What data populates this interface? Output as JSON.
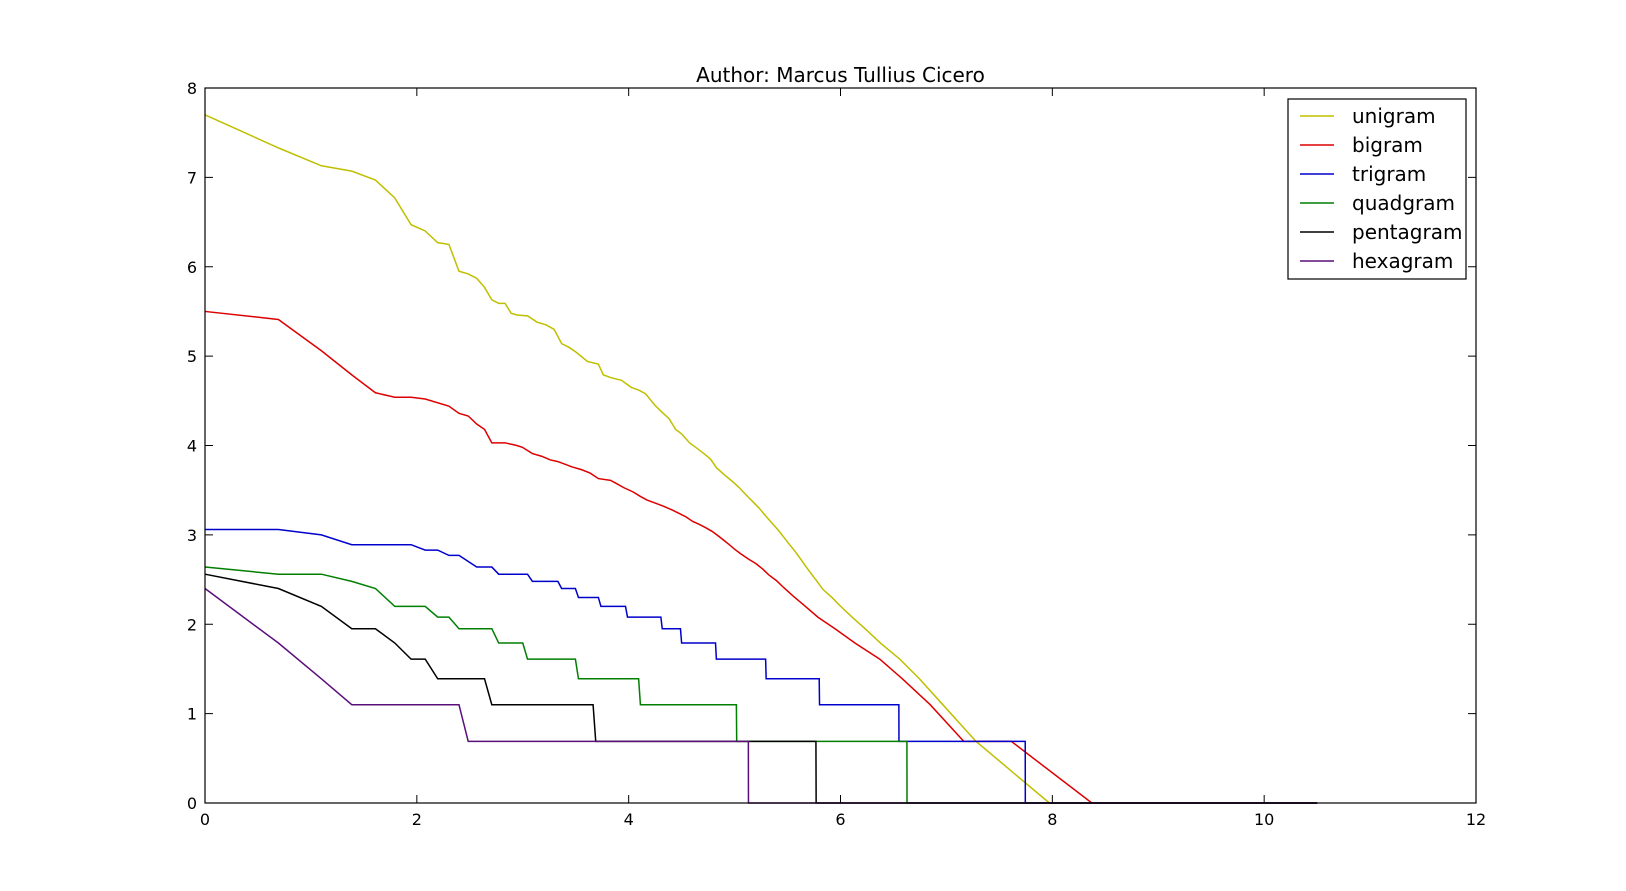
{
  "chart_data": {
    "type": "line",
    "title": "Author: Marcus Tullius Cicero",
    "xlabel": "",
    "ylabel": "",
    "xlim": [
      0,
      12
    ],
    "ylim": [
      0,
      8
    ],
    "xticks": [
      0,
      2,
      4,
      6,
      8,
      10,
      12
    ],
    "yticks": [
      0,
      1,
      2,
      3,
      4,
      5,
      6,
      7,
      8
    ],
    "grid": false,
    "legend_position": "top-right",
    "series": [
      {
        "name": "unigram",
        "color": "#bfbf00",
        "step_last": true,
        "points": [
          [
            0,
            7.7
          ],
          [
            0.693,
            7.33
          ],
          [
            1.099,
            7.13
          ],
          [
            1.386,
            7.07
          ],
          [
            1.609,
            6.97
          ],
          [
            1.792,
            6.77
          ],
          [
            1.946,
            6.47
          ],
          [
            2.079,
            6.4
          ],
          [
            2.197,
            6.27
          ],
          [
            2.303,
            6.25
          ],
          [
            2.398,
            5.95
          ],
          [
            2.485,
            5.92
          ],
          [
            2.565,
            5.87
          ],
          [
            2.639,
            5.77
          ],
          [
            2.708,
            5.63
          ],
          [
            2.773,
            5.59
          ],
          [
            2.833,
            5.59
          ],
          [
            2.89,
            5.48
          ],
          [
            2.944,
            5.46
          ],
          [
            3.045,
            5.45
          ],
          [
            3.135,
            5.38
          ],
          [
            3.219,
            5.35
          ],
          [
            3.296,
            5.3
          ],
          [
            3.367,
            5.14
          ],
          [
            3.434,
            5.1
          ],
          [
            3.497,
            5.05
          ],
          [
            3.611,
            4.94
          ],
          [
            3.714,
            4.91
          ],
          [
            3.761,
            4.79
          ],
          [
            3.829,
            4.76
          ],
          [
            3.932,
            4.73
          ],
          [
            4.025,
            4.65
          ],
          [
            4.094,
            4.62
          ],
          [
            4.159,
            4.58
          ],
          [
            4.248,
            4.45
          ],
          [
            4.317,
            4.37
          ],
          [
            4.382,
            4.3
          ],
          [
            4.443,
            4.18
          ],
          [
            4.5,
            4.13
          ],
          [
            4.575,
            4.03
          ],
          [
            4.644,
            3.97
          ],
          [
            4.71,
            3.91
          ],
          [
            4.771,
            3.85
          ],
          [
            4.83,
            3.75
          ],
          [
            4.905,
            3.67
          ],
          [
            4.977,
            3.6
          ],
          [
            5.043,
            3.53
          ],
          [
            5.106,
            3.45
          ],
          [
            5.165,
            3.38
          ],
          [
            5.231,
            3.3
          ],
          [
            5.288,
            3.22
          ],
          [
            5.347,
            3.14
          ],
          [
            5.407,
            3.06
          ],
          [
            5.461,
            2.98
          ],
          [
            5.513,
            2.9
          ],
          [
            5.568,
            2.82
          ],
          [
            5.624,
            2.73
          ],
          [
            5.677,
            2.64
          ],
          [
            5.727,
            2.56
          ],
          [
            5.778,
            2.48
          ],
          [
            5.834,
            2.39
          ],
          [
            5.919,
            2.3
          ],
          [
            6.002,
            2.2
          ],
          [
            6.109,
            2.08
          ],
          [
            6.232,
            1.95
          ],
          [
            6.377,
            1.79
          ],
          [
            6.559,
            1.61
          ],
          [
            6.745,
            1.39
          ],
          [
            6.966,
            1.1
          ],
          [
            7.279,
            0.69
          ],
          [
            7.972,
            0.0
          ],
          [
            10.5,
            0.0
          ]
        ]
      },
      {
        "name": "bigram",
        "color": "#dd0000",
        "step_last": true,
        "points": [
          [
            0,
            5.5
          ],
          [
            0.693,
            5.41
          ],
          [
            1.099,
            5.06
          ],
          [
            1.386,
            4.79
          ],
          [
            1.609,
            4.59
          ],
          [
            1.792,
            4.54
          ],
          [
            1.946,
            4.54
          ],
          [
            2.079,
            4.52
          ],
          [
            2.303,
            4.44
          ],
          [
            2.398,
            4.36
          ],
          [
            2.485,
            4.33
          ],
          [
            2.565,
            4.24
          ],
          [
            2.639,
            4.18
          ],
          [
            2.708,
            4.03
          ],
          [
            2.833,
            4.03
          ],
          [
            2.944,
            4.0
          ],
          [
            2.996,
            3.98
          ],
          [
            3.091,
            3.91
          ],
          [
            3.178,
            3.88
          ],
          [
            3.258,
            3.84
          ],
          [
            3.332,
            3.82
          ],
          [
            3.401,
            3.79
          ],
          [
            3.466,
            3.76
          ],
          [
            3.555,
            3.73
          ],
          [
            3.638,
            3.69
          ],
          [
            3.714,
            3.63
          ],
          [
            3.829,
            3.61
          ],
          [
            3.892,
            3.57
          ],
          [
            3.951,
            3.53
          ],
          [
            4.043,
            3.48
          ],
          [
            4.111,
            3.43
          ],
          [
            4.174,
            3.39
          ],
          [
            4.263,
            3.35
          ],
          [
            4.331,
            3.32
          ],
          [
            4.407,
            3.28
          ],
          [
            4.477,
            3.24
          ],
          [
            4.543,
            3.2
          ],
          [
            4.605,
            3.15
          ],
          [
            4.663,
            3.12
          ],
          [
            4.727,
            3.08
          ],
          [
            4.787,
            3.04
          ],
          [
            4.844,
            2.99
          ],
          [
            4.898,
            2.94
          ],
          [
            4.95,
            2.89
          ],
          [
            5.0,
            2.84
          ],
          [
            5.056,
            2.79
          ],
          [
            5.13,
            2.73
          ],
          [
            5.2,
            2.68
          ],
          [
            5.263,
            2.62
          ],
          [
            5.325,
            2.55
          ],
          [
            5.394,
            2.49
          ],
          [
            5.464,
            2.41
          ],
          [
            5.549,
            2.32
          ],
          [
            5.658,
            2.21
          ],
          [
            5.786,
            2.08
          ],
          [
            5.948,
            1.95
          ],
          [
            6.136,
            1.79
          ],
          [
            6.37,
            1.61
          ],
          [
            6.584,
            1.39
          ],
          [
            6.847,
            1.1
          ],
          [
            7.164,
            0.69
          ],
          [
            7.612,
            0.69
          ],
          [
            8.373,
            0.0
          ],
          [
            10.5,
            0.0
          ]
        ]
      },
      {
        "name": "trigram",
        "color": "#0000cc",
        "step_last": true,
        "points": [
          [
            0,
            3.06
          ],
          [
            0.693,
            3.06
          ],
          [
            1.099,
            3.0
          ],
          [
            1.386,
            2.89
          ],
          [
            1.609,
            2.89
          ],
          [
            1.946,
            2.89
          ],
          [
            2.079,
            2.83
          ],
          [
            2.197,
            2.83
          ],
          [
            2.303,
            2.77
          ],
          [
            2.398,
            2.77
          ],
          [
            2.565,
            2.64
          ],
          [
            2.708,
            2.64
          ],
          [
            2.773,
            2.56
          ],
          [
            3.045,
            2.56
          ],
          [
            3.091,
            2.48
          ],
          [
            3.332,
            2.48
          ],
          [
            3.367,
            2.4
          ],
          [
            3.497,
            2.4
          ],
          [
            3.526,
            2.3
          ],
          [
            3.714,
            2.3
          ],
          [
            3.738,
            2.2
          ],
          [
            3.97,
            2.2
          ],
          [
            3.989,
            2.08
          ],
          [
            4.304,
            2.08
          ],
          [
            4.317,
            1.95
          ],
          [
            4.489,
            1.95
          ],
          [
            4.5,
            1.79
          ],
          [
            4.82,
            1.79
          ],
          [
            4.828,
            1.61
          ],
          [
            5.293,
            1.61
          ],
          [
            5.298,
            1.39
          ],
          [
            5.799,
            1.39
          ],
          [
            5.802,
            1.1
          ],
          [
            6.551,
            1.1
          ],
          [
            6.552,
            0.69
          ],
          [
            7.744,
            0.69
          ],
          [
            7.745,
            0.0
          ],
          [
            10.5,
            0.0
          ]
        ]
      },
      {
        "name": "quadgram",
        "color": "#007f00",
        "step_last": true,
        "points": [
          [
            0,
            2.64
          ],
          [
            0.693,
            2.56
          ],
          [
            1.099,
            2.56
          ],
          [
            1.386,
            2.48
          ],
          [
            1.609,
            2.4
          ],
          [
            1.792,
            2.2
          ],
          [
            2.079,
            2.2
          ],
          [
            2.197,
            2.08
          ],
          [
            2.303,
            2.08
          ],
          [
            2.398,
            1.95
          ],
          [
            2.708,
            1.95
          ],
          [
            2.773,
            1.79
          ],
          [
            3.0,
            1.79
          ],
          [
            3.045,
            1.61
          ],
          [
            3.497,
            1.61
          ],
          [
            3.526,
            1.39
          ],
          [
            4.094,
            1.39
          ],
          [
            4.111,
            1.1
          ],
          [
            5.017,
            1.1
          ],
          [
            5.02,
            0.69
          ],
          [
            6.627,
            0.69
          ],
          [
            6.628,
            0.0
          ],
          [
            10.5,
            0.0
          ]
        ]
      },
      {
        "name": "pentagram",
        "color": "#000000",
        "step_last": true,
        "points": [
          [
            0,
            2.56
          ],
          [
            0.693,
            2.4
          ],
          [
            1.099,
            2.2
          ],
          [
            1.386,
            1.95
          ],
          [
            1.609,
            1.95
          ],
          [
            1.792,
            1.79
          ],
          [
            1.946,
            1.61
          ],
          [
            2.079,
            1.61
          ],
          [
            2.197,
            1.39
          ],
          [
            2.639,
            1.39
          ],
          [
            2.708,
            1.1
          ],
          [
            3.664,
            1.1
          ],
          [
            3.689,
            0.69
          ],
          [
            5.768,
            0.69
          ],
          [
            5.77,
            0.0
          ],
          [
            10.5,
            0.0
          ]
        ]
      },
      {
        "name": "hexagram",
        "color": "#5a0f7a",
        "step_last": true,
        "points": [
          [
            0,
            2.4
          ],
          [
            0.693,
            1.79
          ],
          [
            1.099,
            1.39
          ],
          [
            1.386,
            1.1
          ],
          [
            2.398,
            1.1
          ],
          [
            2.485,
            0.69
          ],
          [
            5.13,
            0.69
          ],
          [
            5.131,
            0.0
          ],
          [
            10.5,
            0.0
          ]
        ]
      }
    ]
  }
}
